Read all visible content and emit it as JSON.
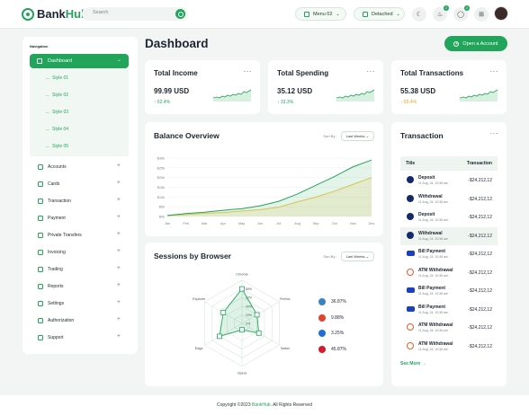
{
  "app": {
    "name_part1": "Bank",
    "name_part2": "Hub"
  },
  "search": {
    "placeholder": "Search"
  },
  "topbar": {
    "menu_label": "Menu 02",
    "mode_label": "Detached",
    "badge_notifications": "2",
    "badge_messages": "0"
  },
  "sidebar": {
    "heading": "Navigation",
    "dashboard_label": "Dashboard",
    "styles": [
      "Style 01",
      "Style 02",
      "Style 03",
      "Style 04",
      "Style 05"
    ],
    "items": [
      "Accounts",
      "Cards",
      "Transaction",
      "Payment",
      "Private Transfers",
      "Invoicing",
      "Trading",
      "Reports",
      "Settings",
      "Authorization",
      "Support"
    ]
  },
  "main": {
    "title": "Dashboard",
    "open_account_label": "Open a Account"
  },
  "stats": [
    {
      "title": "Total Income",
      "value": "99.99 USD",
      "change": "62.4%",
      "color": "#22a55b"
    },
    {
      "title": "Total Spending",
      "value": "35.12 USD",
      "change": "33.3%",
      "color": "#22a55b"
    },
    {
      "title": "Total Transactions",
      "value": "55.38 USD",
      "change": "55.4%",
      "color": "#e6a21c"
    }
  ],
  "balance": {
    "title": "Balance Overview",
    "sort_label": "Sort By :",
    "sort_value": "Last Weeks"
  },
  "sessions": {
    "title": "Sessions by Browser",
    "sort_label": "Sort By :",
    "sort_value": "Last Weeks"
  },
  "browsers": [
    {
      "value": "36.87%",
      "color": "#3b82c4"
    },
    {
      "value": "9.88%",
      "color": "#e0442f"
    },
    {
      "value": "3.25%",
      "color": "#1d6fd1"
    },
    {
      "value": "45.87%",
      "color": "#d11d2c"
    }
  ],
  "transactions": {
    "title": "Transaction",
    "col_title": "Title",
    "col_amount": "Transaction",
    "see_more": "See More",
    "rows": [
      {
        "name": "Deposit",
        "date": "11 Aug, 24. 10:36 am",
        "amount": "-$24,212,12",
        "icon": "paypal"
      },
      {
        "name": "Withdrawal",
        "date": "11 Aug, 24. 10:36 am",
        "amount": "-$24,212,12",
        "icon": "paypal"
      },
      {
        "name": "Deposit",
        "date": "11 Aug, 24. 10:36 am",
        "amount": "-$24,212,12",
        "icon": "paypal"
      },
      {
        "name": "Withdrawal",
        "date": "11 Aug, 24. 10:36 am",
        "amount": "-$24,212,12",
        "icon": "paypal"
      },
      {
        "name": "Bill Payment",
        "date": "11 Aug, 24. 10:36 am",
        "amount": "-$24,212,12",
        "icon": "visa"
      },
      {
        "name": "ATM Withdrawal",
        "date": "11 Aug, 24. 10:36 am",
        "amount": "-$24,212,12",
        "icon": "ring"
      },
      {
        "name": "Bill Payment",
        "date": "11 Aug, 24. 10:36 am",
        "amount": "-$24,212,12",
        "icon": "visa"
      },
      {
        "name": "Bill Payment",
        "date": "11 Aug, 24. 10:36 am",
        "amount": "-$24,212,12",
        "icon": "visa"
      },
      {
        "name": "ATM Withdrawal",
        "date": "11 Aug, 24. 10:36 am",
        "amount": "-$24,212,12",
        "icon": "ring"
      },
      {
        "name": "ATM Withdrawal",
        "date": "11 Aug, 24. 10:36 am",
        "amount": "-$24,212,12",
        "icon": "ring"
      }
    ]
  },
  "footer": {
    "prefix": "Copyright ©2023",
    "brand": "BankHub",
    "suffix": ". All Rights Reserved"
  },
  "chart_data": [
    {
      "type": "area",
      "categories": [
        "Jan",
        "Feb",
        "Mar",
        "Apr",
        "May",
        "Jun",
        "Jul",
        "Aug",
        "Sep",
        "Oct",
        "Nov",
        "Dec"
      ],
      "yticks": [
        "$0k",
        "$5k",
        "$10k",
        "$15k",
        "$20k",
        "$25k",
        "$30k"
      ],
      "ylim": [
        0,
        30
      ],
      "series": [
        {
          "values": [
            0.5,
            1.5,
            2.2,
            3.2,
            4.0,
            5.5,
            7.8,
            11.5,
            16.0,
            20.5,
            25.5,
            29.0
          ],
          "color": "#22a55b"
        },
        {
          "values": [
            0.5,
            1.0,
            1.6,
            2.0,
            2.8,
            3.5,
            4.8,
            7.5,
            10.0,
            13.0,
            16.5,
            20.0
          ],
          "color": "#f2c94c"
        }
      ]
    },
    {
      "type": "radar",
      "axes": [
        "Chrome",
        "Firefox",
        "Safari",
        "Opera",
        "Edge",
        "Explorer"
      ],
      "rings": [
        "80%",
        "60%",
        "40%",
        "20%",
        "0%"
      ],
      "values": [
        80,
        40,
        45,
        15,
        60,
        50
      ]
    }
  ]
}
